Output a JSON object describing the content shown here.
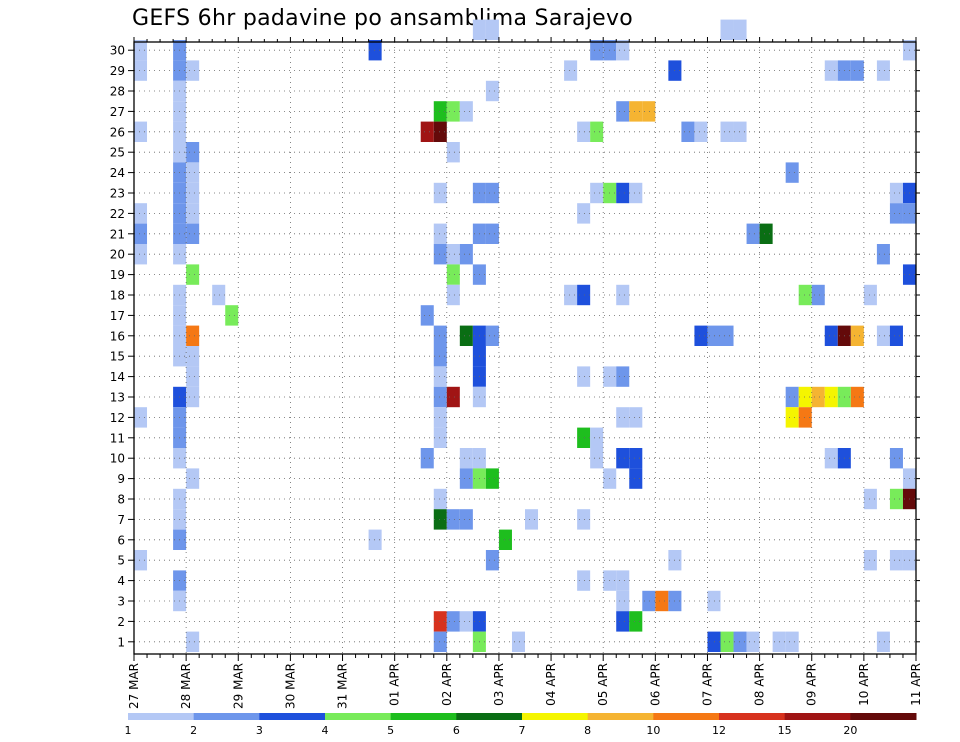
{
  "chart_data": {
    "type": "heatmap",
    "title": "GEFS 6hr padavine po ansamblima Sarajevo",
    "xlabel": "",
    "ylabel": "",
    "x_tick_labels": [
      "27 MAR",
      "28 MAR",
      "29 MAR",
      "30 MAR",
      "31 MAR",
      "01 APR",
      "02 APR",
      "03 APR",
      "04 APR",
      "05 APR",
      "06 APR",
      "07 APR",
      "08 APR",
      "09 APR",
      "10 APR",
      "11 APR"
    ],
    "x_units": "6-hour steps from 27 MAR",
    "xlim": [
      0,
      60
    ],
    "ylim": [
      0,
      30
    ],
    "y_tick_labels": [
      "1",
      "2",
      "3",
      "4",
      "5",
      "6",
      "7",
      "8",
      "9",
      "10",
      "11",
      "12",
      "13",
      "14",
      "15",
      "16",
      "17",
      "18",
      "19",
      "20",
      "21",
      "22",
      "23",
      "24",
      "25",
      "26",
      "27",
      "28",
      "29",
      "30"
    ],
    "grid": true,
    "colorbar": {
      "levels": [
        "1",
        "2",
        "3",
        "4",
        "5",
        "6",
        "7",
        "8",
        "10",
        "12",
        "15",
        "20"
      ],
      "colors": [
        "#b4c8f5",
        "#6e96eb",
        "#1e50dc",
        "#78eb5a",
        "#1ebe1e",
        "#0a6e14",
        "#f5f500",
        "#f5b432",
        "#f57814",
        "#d7321e",
        "#a01414",
        "#640a0a"
      ]
    },
    "cells": [
      {
        "m": 30,
        "t": 26,
        "c": 0
      },
      {
        "m": 30,
        "t": 27,
        "c": 0
      },
      {
        "m": 30,
        "t": 45,
        "c": 0
      },
      {
        "m": 30,
        "t": 46,
        "c": 0
      },
      {
        "m": 29,
        "t": 0,
        "c": 0
      },
      {
        "m": 29,
        "t": 3,
        "c": 1
      },
      {
        "m": 29,
        "t": 18,
        "c": 2
      },
      {
        "m": 29,
        "t": 35,
        "c": 1
      },
      {
        "m": 29,
        "t": 36,
        "c": 1
      },
      {
        "m": 29,
        "t": 37,
        "c": 0
      },
      {
        "m": 29,
        "t": 59,
        "c": 0
      },
      {
        "m": 28,
        "t": 0,
        "c": 0
      },
      {
        "m": 28,
        "t": 3,
        "c": 1
      },
      {
        "m": 28,
        "t": 4,
        "c": 0
      },
      {
        "m": 28,
        "t": 33,
        "c": 0
      },
      {
        "m": 28,
        "t": 41,
        "c": 2
      },
      {
        "m": 28,
        "t": 53,
        "c": 0
      },
      {
        "m": 28,
        "t": 54,
        "c": 1
      },
      {
        "m": 28,
        "t": 55,
        "c": 1
      },
      {
        "m": 28,
        "t": 57,
        "c": 0
      },
      {
        "m": 27,
        "t": 3,
        "c": 0
      },
      {
        "m": 27,
        "t": 27,
        "c": 0
      },
      {
        "m": 26,
        "t": 3,
        "c": 0
      },
      {
        "m": 26,
        "t": 23,
        "c": 4
      },
      {
        "m": 26,
        "t": 24,
        "c": 3
      },
      {
        "m": 26,
        "t": 25,
        "c": 0
      },
      {
        "m": 26,
        "t": 37,
        "c": 1
      },
      {
        "m": 26,
        "t": 38,
        "c": 7
      },
      {
        "m": 26,
        "t": 39,
        "c": 7
      },
      {
        "m": 25,
        "t": 0,
        "c": 0
      },
      {
        "m": 25,
        "t": 3,
        "c": 0
      },
      {
        "m": 25,
        "t": 22,
        "c": 10
      },
      {
        "m": 25,
        "t": 23,
        "c": 11
      },
      {
        "m": 25,
        "t": 34,
        "c": 0
      },
      {
        "m": 25,
        "t": 35,
        "c": 3
      },
      {
        "m": 25,
        "t": 42,
        "c": 1
      },
      {
        "m": 25,
        "t": 43,
        "c": 0
      },
      {
        "m": 25,
        "t": 45,
        "c": 0
      },
      {
        "m": 25,
        "t": 46,
        "c": 0
      },
      {
        "m": 24,
        "t": 3,
        "c": 0
      },
      {
        "m": 24,
        "t": 4,
        "c": 1
      },
      {
        "m": 24,
        "t": 24,
        "c": 0
      },
      {
        "m": 23,
        "t": 3,
        "c": 1
      },
      {
        "m": 23,
        "t": 4,
        "c": 0
      },
      {
        "m": 23,
        "t": 50,
        "c": 1
      },
      {
        "m": 22,
        "t": 3,
        "c": 1
      },
      {
        "m": 22,
        "t": 4,
        "c": 0
      },
      {
        "m": 22,
        "t": 23,
        "c": 0
      },
      {
        "m": 22,
        "t": 26,
        "c": 1
      },
      {
        "m": 22,
        "t": 27,
        "c": 1
      },
      {
        "m": 22,
        "t": 35,
        "c": 0
      },
      {
        "m": 22,
        "t": 36,
        "c": 3
      },
      {
        "m": 22,
        "t": 37,
        "c": 2
      },
      {
        "m": 22,
        "t": 38,
        "c": 0
      },
      {
        "m": 22,
        "t": 58,
        "c": 0
      },
      {
        "m": 22,
        "t": 59,
        "c": 2
      },
      {
        "m": 21,
        "t": 0,
        "c": 0
      },
      {
        "m": 21,
        "t": 3,
        "c": 1
      },
      {
        "m": 21,
        "t": 4,
        "c": 0
      },
      {
        "m": 21,
        "t": 34,
        "c": 0
      },
      {
        "m": 21,
        "t": 58,
        "c": 1
      },
      {
        "m": 21,
        "t": 59,
        "c": 1
      },
      {
        "m": 20,
        "t": 0,
        "c": 1
      },
      {
        "m": 20,
        "t": 3,
        "c": 1
      },
      {
        "m": 20,
        "t": 4,
        "c": 1
      },
      {
        "m": 20,
        "t": 23,
        "c": 0
      },
      {
        "m": 20,
        "t": 26,
        "c": 1
      },
      {
        "m": 20,
        "t": 27,
        "c": 1
      },
      {
        "m": 20,
        "t": 47,
        "c": 1
      },
      {
        "m": 20,
        "t": 48,
        "c": 5
      },
      {
        "m": 19,
        "t": 0,
        "c": 0
      },
      {
        "m": 19,
        "t": 3,
        "c": 0
      },
      {
        "m": 19,
        "t": 23,
        "c": 1
      },
      {
        "m": 19,
        "t": 24,
        "c": 0
      },
      {
        "m": 19,
        "t": 25,
        "c": 1
      },
      {
        "m": 19,
        "t": 57,
        "c": 1
      },
      {
        "m": 18,
        "t": 4,
        "c": 3
      },
      {
        "m": 18,
        "t": 24,
        "c": 3
      },
      {
        "m": 18,
        "t": 26,
        "c": 1
      },
      {
        "m": 18,
        "t": 59,
        "c": 2
      },
      {
        "m": 17,
        "t": 3,
        "c": 0
      },
      {
        "m": 17,
        "t": 6,
        "c": 0
      },
      {
        "m": 17,
        "t": 24,
        "c": 0
      },
      {
        "m": 17,
        "t": 33,
        "c": 0
      },
      {
        "m": 17,
        "t": 34,
        "c": 2
      },
      {
        "m": 17,
        "t": 37,
        "c": 0
      },
      {
        "m": 17,
        "t": 51,
        "c": 3
      },
      {
        "m": 17,
        "t": 52,
        "c": 1
      },
      {
        "m": 17,
        "t": 56,
        "c": 0
      },
      {
        "m": 16,
        "t": 3,
        "c": 0
      },
      {
        "m": 16,
        "t": 7,
        "c": 3
      },
      {
        "m": 16,
        "t": 22,
        "c": 1
      },
      {
        "m": 15,
        "t": 3,
        "c": 0
      },
      {
        "m": 15,
        "t": 4,
        "c": 8
      },
      {
        "m": 15,
        "t": 23,
        "c": 1
      },
      {
        "m": 15,
        "t": 25,
        "c": 5
      },
      {
        "m": 15,
        "t": 26,
        "c": 2
      },
      {
        "m": 15,
        "t": 27,
        "c": 1
      },
      {
        "m": 15,
        "t": 43,
        "c": 2
      },
      {
        "m": 15,
        "t": 44,
        "c": 1
      },
      {
        "m": 15,
        "t": 45,
        "c": 1
      },
      {
        "m": 15,
        "t": 53,
        "c": 2
      },
      {
        "m": 15,
        "t": 54,
        "c": 11
      },
      {
        "m": 15,
        "t": 55,
        "c": 7
      },
      {
        "m": 15,
        "t": 57,
        "c": 0
      },
      {
        "m": 15,
        "t": 58,
        "c": 2
      },
      {
        "m": 14,
        "t": 3,
        "c": 0
      },
      {
        "m": 14,
        "t": 4,
        "c": 0
      },
      {
        "m": 14,
        "t": 23,
        "c": 1
      },
      {
        "m": 14,
        "t": 26,
        "c": 2
      },
      {
        "m": 13,
        "t": 4,
        "c": 0
      },
      {
        "m": 13,
        "t": 23,
        "c": 0
      },
      {
        "m": 13,
        "t": 26,
        "c": 2
      },
      {
        "m": 13,
        "t": 34,
        "c": 0
      },
      {
        "m": 13,
        "t": 36,
        "c": 0
      },
      {
        "m": 13,
        "t": 37,
        "c": 1
      },
      {
        "m": 12,
        "t": 3,
        "c": 2
      },
      {
        "m": 12,
        "t": 4,
        "c": 0
      },
      {
        "m": 12,
        "t": 23,
        "c": 1
      },
      {
        "m": 12,
        "t": 24,
        "c": 10
      },
      {
        "m": 12,
        "t": 26,
        "c": 0
      },
      {
        "m": 12,
        "t": 50,
        "c": 1
      },
      {
        "m": 12,
        "t": 51,
        "c": 6
      },
      {
        "m": 12,
        "t": 52,
        "c": 7
      },
      {
        "m": 12,
        "t": 53,
        "c": 6
      },
      {
        "m": 12,
        "t": 54,
        "c": 3
      },
      {
        "m": 12,
        "t": 55,
        "c": 8
      },
      {
        "m": 11,
        "t": 0,
        "c": 0
      },
      {
        "m": 11,
        "t": 3,
        "c": 1
      },
      {
        "m": 11,
        "t": 23,
        "c": 0
      },
      {
        "m": 11,
        "t": 37,
        "c": 0
      },
      {
        "m": 11,
        "t": 38,
        "c": 0
      },
      {
        "m": 11,
        "t": 50,
        "c": 6
      },
      {
        "m": 11,
        "t": 51,
        "c": 8
      },
      {
        "m": 10,
        "t": 3,
        "c": 1
      },
      {
        "m": 10,
        "t": 23,
        "c": 0
      },
      {
        "m": 10,
        "t": 34,
        "c": 4
      },
      {
        "m": 10,
        "t": 35,
        "c": 0
      },
      {
        "m": 9,
        "t": 3,
        "c": 0
      },
      {
        "m": 9,
        "t": 22,
        "c": 1
      },
      {
        "m": 9,
        "t": 25,
        "c": 0
      },
      {
        "m": 9,
        "t": 26,
        "c": 0
      },
      {
        "m": 9,
        "t": 35,
        "c": 0
      },
      {
        "m": 9,
        "t": 37,
        "c": 2
      },
      {
        "m": 9,
        "t": 38,
        "c": 2
      },
      {
        "m": 9,
        "t": 53,
        "c": 0
      },
      {
        "m": 9,
        "t": 54,
        "c": 2
      },
      {
        "m": 9,
        "t": 58,
        "c": 1
      },
      {
        "m": 8,
        "t": 4,
        "c": 0
      },
      {
        "m": 8,
        "t": 25,
        "c": 1
      },
      {
        "m": 8,
        "t": 26,
        "c": 3
      },
      {
        "m": 8,
        "t": 27,
        "c": 4
      },
      {
        "m": 8,
        "t": 36,
        "c": 0
      },
      {
        "m": 8,
        "t": 38,
        "c": 2
      },
      {
        "m": 8,
        "t": 59,
        "c": 0
      },
      {
        "m": 7,
        "t": 3,
        "c": 0
      },
      {
        "m": 7,
        "t": 23,
        "c": 0
      },
      {
        "m": 7,
        "t": 56,
        "c": 0
      },
      {
        "m": 7,
        "t": 58,
        "c": 3
      },
      {
        "m": 7,
        "t": 59,
        "c": 11
      },
      {
        "m": 6,
        "t": 3,
        "c": 0
      },
      {
        "m": 6,
        "t": 23,
        "c": 5
      },
      {
        "m": 6,
        "t": 24,
        "c": 1
      },
      {
        "m": 6,
        "t": 25,
        "c": 1
      },
      {
        "m": 6,
        "t": 30,
        "c": 0
      },
      {
        "m": 6,
        "t": 34,
        "c": 0
      },
      {
        "m": 5,
        "t": 3,
        "c": 1
      },
      {
        "m": 5,
        "t": 18,
        "c": 0
      },
      {
        "m": 5,
        "t": 28,
        "c": 4
      },
      {
        "m": 4,
        "t": 0,
        "c": 0
      },
      {
        "m": 4,
        "t": 27,
        "c": 1
      },
      {
        "m": 4,
        "t": 41,
        "c": 0
      },
      {
        "m": 4,
        "t": 56,
        "c": 0
      },
      {
        "m": 4,
        "t": 58,
        "c": 0
      },
      {
        "m": 4,
        "t": 59,
        "c": 0
      },
      {
        "m": 3,
        "t": 3,
        "c": 1
      },
      {
        "m": 3,
        "t": 34,
        "c": 0
      },
      {
        "m": 3,
        "t": 36,
        "c": 0
      },
      {
        "m": 3,
        "t": 37,
        "c": 0
      },
      {
        "m": 2,
        "t": 3,
        "c": 0
      },
      {
        "m": 2,
        "t": 37,
        "c": 0
      },
      {
        "m": 2,
        "t": 39,
        "c": 1
      },
      {
        "m": 2,
        "t": 40,
        "c": 8
      },
      {
        "m": 2,
        "t": 41,
        "c": 1
      },
      {
        "m": 2,
        "t": 44,
        "c": 0
      },
      {
        "m": 1,
        "t": 23,
        "c": 9
      },
      {
        "m": 1,
        "t": 24,
        "c": 1
      },
      {
        "m": 1,
        "t": 25,
        "c": 0
      },
      {
        "m": 1,
        "t": 26,
        "c": 2
      },
      {
        "m": 1,
        "t": 37,
        "c": 2
      },
      {
        "m": 1,
        "t": 38,
        "c": 4
      },
      {
        "m": 0,
        "t": 4,
        "c": 0
      },
      {
        "m": 0,
        "t": 23,
        "c": 1
      },
      {
        "m": 0,
        "t": 26,
        "c": 3
      },
      {
        "m": 0,
        "t": 29,
        "c": 0
      },
      {
        "m": 0,
        "t": 44,
        "c": 2
      },
      {
        "m": 0,
        "t": 45,
        "c": 3
      },
      {
        "m": 0,
        "t": 46,
        "c": 1
      },
      {
        "m": 0,
        "t": 47,
        "c": 0
      },
      {
        "m": 0,
        "t": 49,
        "c": 0
      },
      {
        "m": 0,
        "t": 50,
        "c": 0
      },
      {
        "m": 0,
        "t": 57,
        "c": 0
      }
    ]
  }
}
